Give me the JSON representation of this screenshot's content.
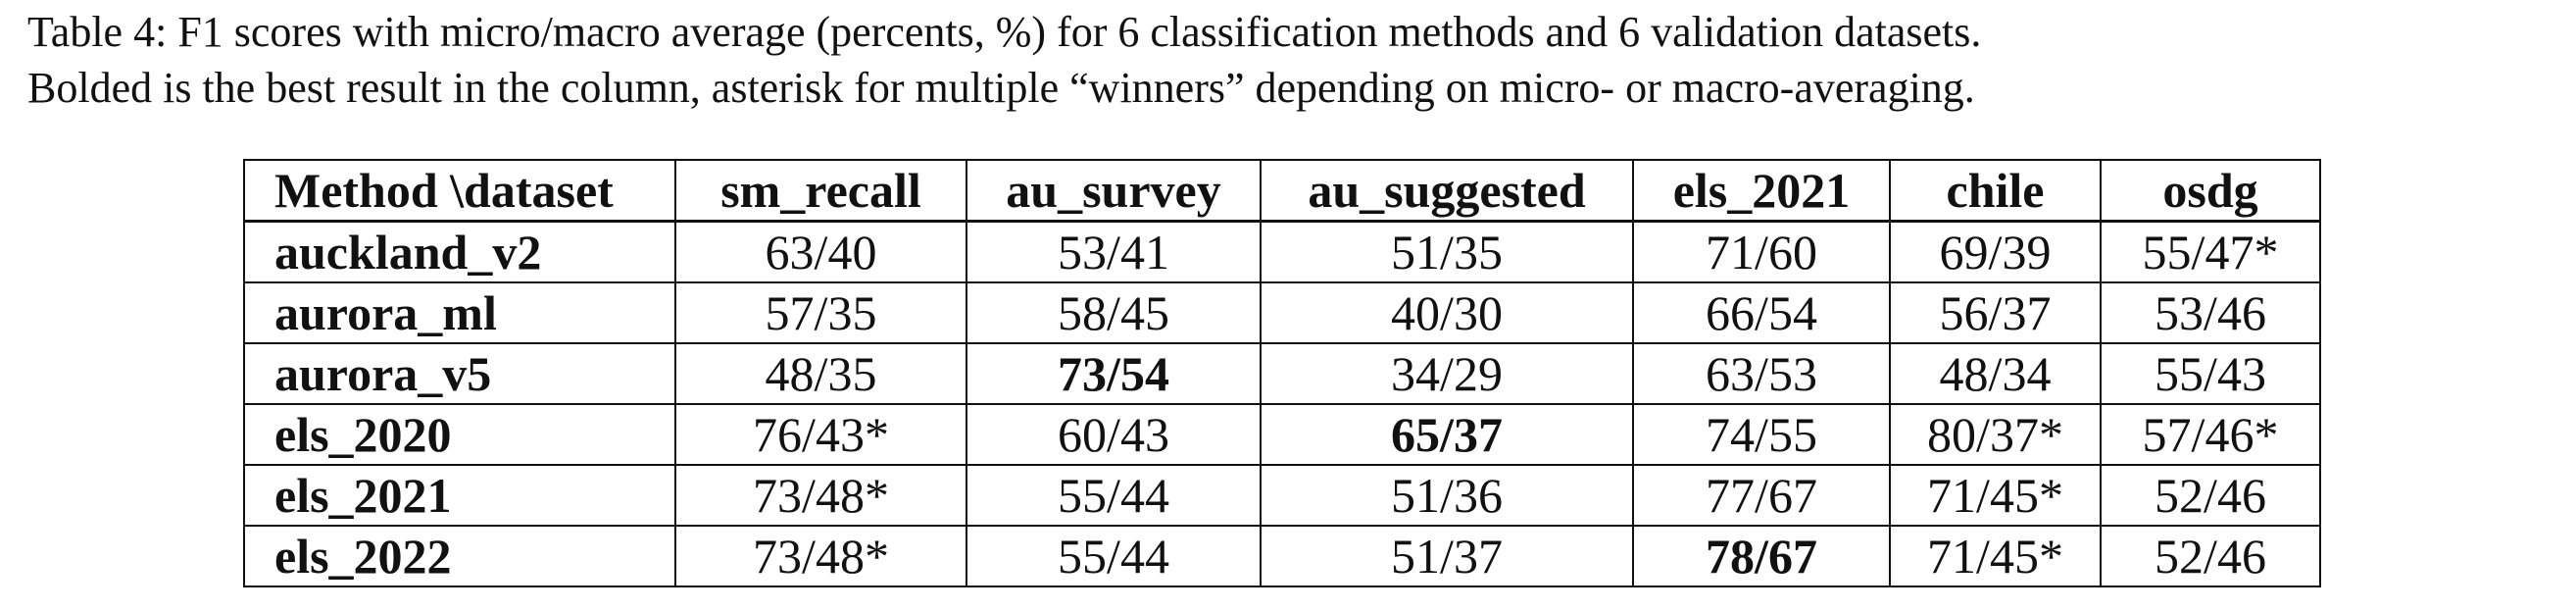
{
  "caption": {
    "line1": "Table 4: F1 scores with micro/macro average (percents, %) for 6 classification methods and 6 validation datasets.",
    "line2": "Bolded is the best result in the column, asterisk for multiple “winners” depending on micro- or macro-averaging."
  },
  "table": {
    "corner_header": "Method \\dataset",
    "columns": [
      "sm_recall",
      "au_survey",
      "au_suggested",
      "els_2021",
      "chile",
      "osdg"
    ],
    "rows": [
      {
        "method": "auckland_v2",
        "cells": [
          "63/40",
          "53/41",
          "51/35",
          "71/60",
          "69/39",
          "55/47*"
        ],
        "bold": [
          false,
          false,
          false,
          false,
          false,
          false
        ]
      },
      {
        "method": "aurora_ml",
        "cells": [
          "57/35",
          "58/45",
          "40/30",
          "66/54",
          "56/37",
          "53/46"
        ],
        "bold": [
          false,
          false,
          false,
          false,
          false,
          false
        ]
      },
      {
        "method": "aurora_v5",
        "cells": [
          "48/35",
          "73/54",
          "34/29",
          "63/53",
          "48/34",
          "55/43"
        ],
        "bold": [
          false,
          true,
          false,
          false,
          false,
          false
        ]
      },
      {
        "method": "els_2020",
        "cells": [
          "76/43*",
          "60/43",
          "65/37",
          "74/55",
          "80/37*",
          "57/46*"
        ],
        "bold": [
          false,
          false,
          true,
          false,
          false,
          false
        ]
      },
      {
        "method": "els_2021",
        "cells": [
          "73/48*",
          "55/44",
          "51/36",
          "77/67",
          "71/45*",
          "52/46"
        ],
        "bold": [
          false,
          false,
          false,
          false,
          false,
          false
        ]
      },
      {
        "method": "els_2022",
        "cells": [
          "73/48*",
          "55/44",
          "51/37",
          "78/67",
          "71/45*",
          "52/46"
        ],
        "bold": [
          false,
          false,
          false,
          true,
          false,
          false
        ]
      }
    ]
  }
}
